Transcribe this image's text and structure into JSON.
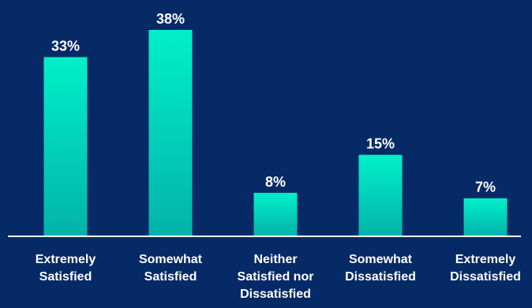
{
  "chart_data": {
    "type": "bar",
    "categories": [
      "Extremely Satisfied",
      "Somewhat Satisfied",
      "Neither Satisfied nor Dissatisfied",
      "Somewhat Dissatisfied",
      "Extremely Dissatisfied"
    ],
    "category_lines": [
      [
        "Extremely",
        "Satisfied"
      ],
      [
        "Somewhat",
        "Satisfied"
      ],
      [
        "Neither",
        "Satisfied nor",
        "Dissatisfied"
      ],
      [
        "Somewhat",
        "Dissatisfied"
      ],
      [
        "Extremely",
        "Dissatisfied"
      ]
    ],
    "values": [
      33,
      38,
      8,
      15,
      7
    ],
    "value_labels": [
      "33%",
      "38%",
      "8%",
      "15%",
      "7%"
    ],
    "title": "",
    "xlabel": "",
    "ylabel": "",
    "ylim": [
      0,
      38
    ],
    "grid": false,
    "legend": "none"
  },
  "colors": {
    "background": "#062a66",
    "bar_top": "#00f0c8",
    "bar_bottom": "#03b2aa",
    "baseline": "#ffffff",
    "text": "#ffffff"
  }
}
